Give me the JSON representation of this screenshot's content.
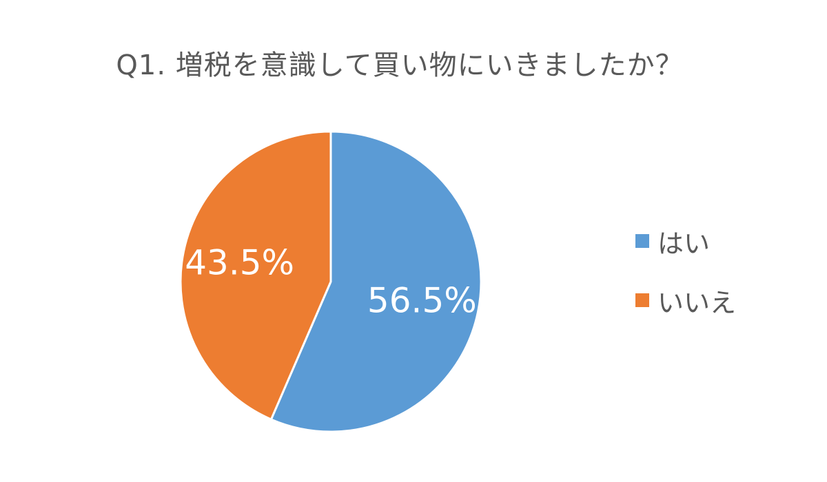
{
  "chart_data": {
    "type": "pie",
    "title": "Q1. 増税を意識して買い物にいきましたか？",
    "categories": [
      "はい",
      "いいえ"
    ],
    "values": [
      56.5,
      43.5
    ],
    "labels": [
      "56.5%",
      "43.5%"
    ],
    "colors": [
      "#5b9bd5",
      "#ed7d31"
    ],
    "start_angle_deg": 0,
    "direction": "clockwise",
    "legend_position": "right"
  },
  "theme": {
    "label_color": "#ffffff",
    "separator_color": "#ffffff"
  }
}
